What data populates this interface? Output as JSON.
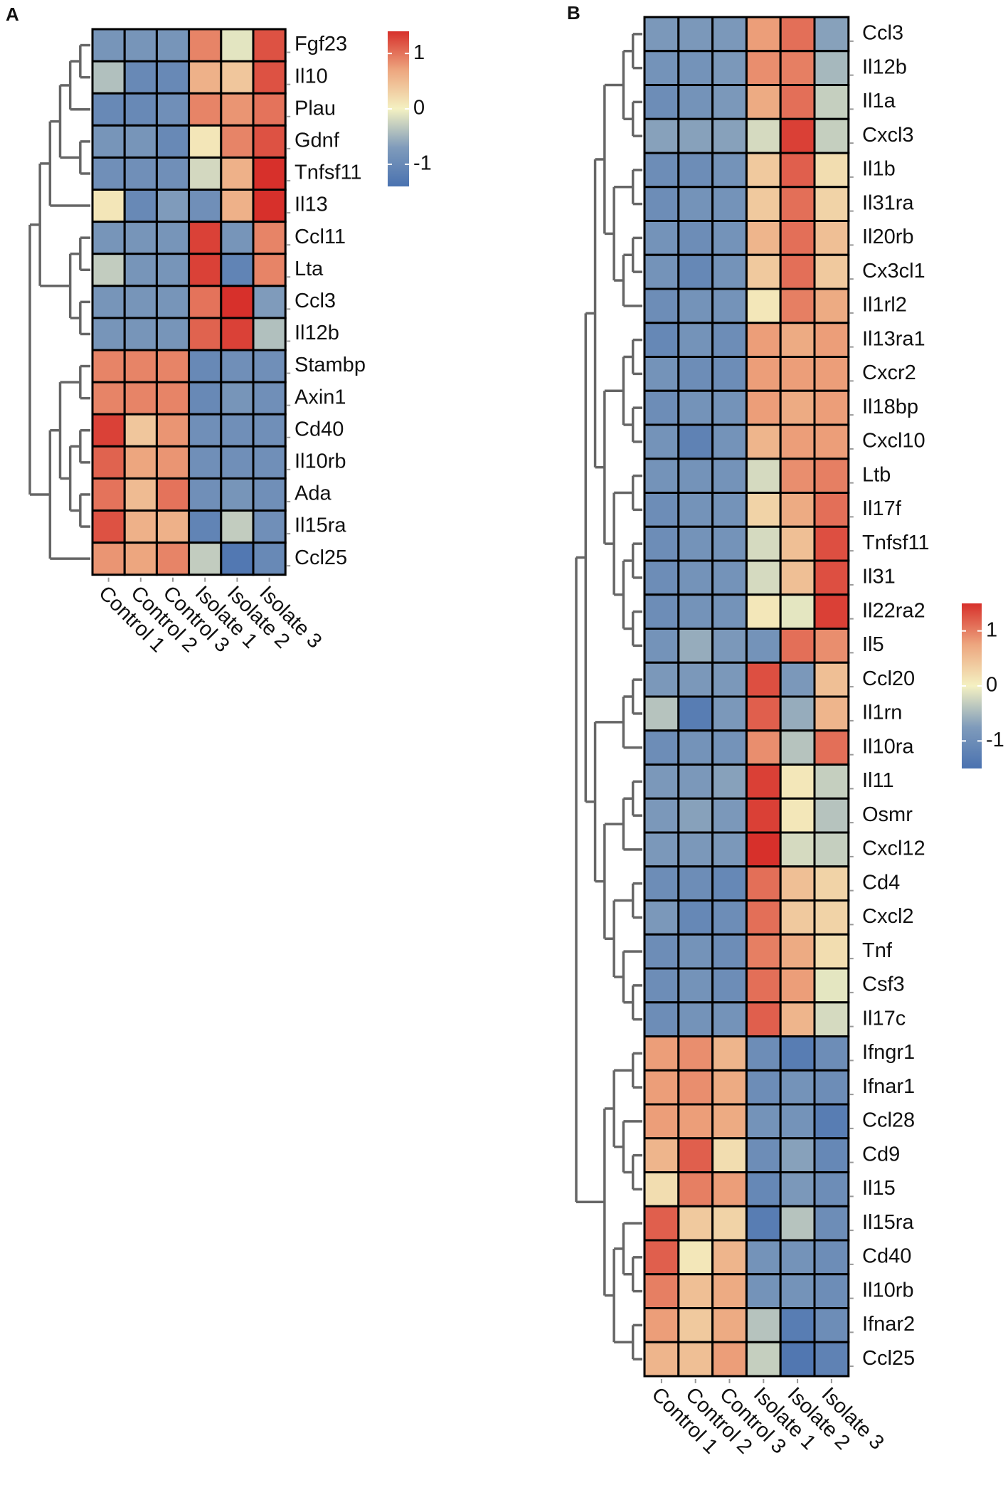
{
  "chart_data": [
    {
      "type": "heatmap",
      "label": "A",
      "rows": [
        "Fgf23",
        "Il10",
        "Plau",
        "Gdnf",
        "Tnfsf11",
        "Il13",
        "Ccl11",
        "Lta",
        "Ccl3",
        "Il12b",
        "Stambp",
        "Axin1",
        "Cd40",
        "Il10rb",
        "Ada",
        "Il15ra",
        "Ccl25"
      ],
      "columns": [
        "Control 1",
        "Control 2",
        "Control 3",
        "Isolate 1",
        "Isolate 2",
        "Isolate 3"
      ],
      "values": [
        [
          -0.8,
          -0.8,
          -0.8,
          0.9,
          -0.1,
          1.2
        ],
        [
          -0.4,
          -1.0,
          -1.0,
          0.6,
          0.4,
          1.2
        ],
        [
          -1.0,
          -1.0,
          -0.9,
          0.9,
          0.8,
          1.0
        ],
        [
          -0.8,
          -0.8,
          -1.0,
          0.1,
          0.9,
          1.2
        ],
        [
          -0.9,
          -0.9,
          -0.9,
          -0.2,
          0.6,
          1.4
        ],
        [
          0.1,
          -1.0,
          -0.7,
          -0.9,
          0.6,
          1.4
        ],
        [
          -0.8,
          -0.8,
          -0.8,
          1.3,
          -0.8,
          0.9
        ],
        [
          -0.3,
          -0.8,
          -0.8,
          1.3,
          -1.1,
          0.9
        ],
        [
          -0.8,
          -0.8,
          -0.8,
          1.0,
          1.4,
          -0.7
        ],
        [
          -0.8,
          -0.8,
          -0.8,
          1.1,
          1.3,
          -0.4
        ],
        [
          0.9,
          0.9,
          0.9,
          -1.0,
          -0.9,
          -0.9
        ],
        [
          0.9,
          0.9,
          0.9,
          -1.0,
          -0.8,
          -0.9
        ],
        [
          1.3,
          0.4,
          0.8,
          -0.9,
          -0.9,
          -0.9
        ],
        [
          1.1,
          0.7,
          0.8,
          -0.9,
          -0.9,
          -0.9
        ],
        [
          1.0,
          0.5,
          1.0,
          -0.9,
          -0.8,
          -0.9
        ],
        [
          1.2,
          0.6,
          0.6,
          -1.1,
          -0.3,
          -0.9
        ],
        [
          0.8,
          0.7,
          0.9,
          -0.3,
          -1.3,
          -1.0
        ]
      ],
      "colorbar_lim": [
        -1.4,
        1.4
      ],
      "colorbar_ticks": [
        -1,
        0,
        1
      ],
      "colors": [
        "#4a72b0",
        "#7f9bbb",
        "#f4f1c2",
        "#eda67f",
        "#d7302b"
      ]
    },
    {
      "type": "heatmap",
      "label": "B",
      "rows": [
        "Ccl3",
        "Il12b",
        "Il1a",
        "Cxcl3",
        "Il1b",
        "Il31ra",
        "Il20rb",
        "Cx3cl1",
        "Il1rl2",
        "Il13ra1",
        "Cxcr2",
        "Il18bp",
        "Cxcl10",
        "Ltb",
        "Il17f",
        "Tnfsf11",
        "Il31",
        "Il22ra2",
        "Il5",
        "Ccl20",
        "Il1rn",
        "Il10ra",
        "Il11",
        "Osmr",
        "Cxcl12",
        "Cd4",
        "Cxcl2",
        "Tnf",
        "Csf3",
        "Il17c",
        "Ifngr1",
        "Ifnar1",
        "Ccl28",
        "Cd9",
        "Il15",
        "Il15ra",
        "Cd40",
        "Il10rb",
        "Ifnar2",
        "Ccl25"
      ],
      "columns": [
        "Control 1",
        "Control 2",
        "Control 3",
        "Isolate 1",
        "Isolate 2",
        "Isolate 3"
      ],
      "values": [
        [
          -0.8,
          -0.8,
          -0.8,
          0.8,
          1.1,
          -0.7
        ],
        [
          -0.9,
          -0.9,
          -0.8,
          0.9,
          1.0,
          -0.5
        ],
        [
          -1.0,
          -0.9,
          -0.8,
          0.7,
          1.1,
          -0.3
        ],
        [
          -0.7,
          -0.7,
          -0.7,
          -0.2,
          1.4,
          -0.3
        ],
        [
          -1.0,
          -1.0,
          -0.9,
          0.4,
          1.2,
          0.2
        ],
        [
          -1.0,
          -0.9,
          -0.9,
          0.4,
          1.1,
          0.3
        ],
        [
          -0.9,
          -1.0,
          -0.9,
          0.6,
          1.1,
          0.5
        ],
        [
          -0.9,
          -1.1,
          -0.9,
          0.4,
          1.1,
          0.4
        ],
        [
          -1.0,
          -0.9,
          -0.9,
          0.1,
          1.0,
          0.7
        ],
        [
          -1.1,
          -0.9,
          -1.0,
          0.8,
          0.7,
          0.8
        ],
        [
          -0.9,
          -1.0,
          -1.0,
          0.8,
          0.8,
          0.8
        ],
        [
          -1.0,
          -0.9,
          -0.9,
          0.8,
          0.7,
          0.8
        ],
        [
          -0.9,
          -1.2,
          -0.9,
          0.6,
          0.8,
          0.8
        ],
        [
          -0.9,
          -0.9,
          -0.9,
          -0.2,
          0.9,
          1.0
        ],
        [
          -1.0,
          -0.9,
          -0.9,
          0.3,
          0.7,
          1.1
        ],
        [
          -1.0,
          -0.9,
          -0.9,
          -0.2,
          0.5,
          1.3
        ],
        [
          -1.0,
          -0.9,
          -0.9,
          -0.2,
          0.5,
          1.3
        ],
        [
          -1.0,
          -0.9,
          -0.9,
          0.1,
          -0.1,
          1.4
        ],
        [
          -0.9,
          -0.6,
          -0.8,
          -0.9,
          1.1,
          0.9
        ],
        [
          -0.8,
          -0.8,
          -0.8,
          1.3,
          -0.8,
          0.5
        ],
        [
          -0.4,
          -1.3,
          -0.8,
          1.2,
          -0.6,
          0.6
        ],
        [
          -1.0,
          -0.9,
          -0.9,
          0.9,
          -0.4,
          1.1
        ],
        [
          -0.8,
          -0.8,
          -0.7,
          1.4,
          0.1,
          -0.3
        ],
        [
          -0.8,
          -0.7,
          -0.8,
          1.4,
          0.1,
          -0.4
        ],
        [
          -0.8,
          -0.8,
          -0.8,
          1.5,
          -0.2,
          -0.3
        ],
        [
          -1.0,
          -1.0,
          -1.1,
          1.1,
          0.5,
          0.3
        ],
        [
          -0.8,
          -1.1,
          -1.0,
          1.1,
          0.4,
          0.3
        ],
        [
          -1.0,
          -0.9,
          -1.0,
          1.0,
          0.7,
          0.2
        ],
        [
          -1.0,
          -0.9,
          -1.0,
          1.1,
          0.8,
          -0.1
        ],
        [
          -1.0,
          -0.9,
          -0.9,
          1.2,
          0.6,
          -0.2
        ],
        [
          0.8,
          0.9,
          0.6,
          -1.0,
          -1.3,
          -1.0
        ],
        [
          0.8,
          0.9,
          0.7,
          -1.0,
          -0.9,
          -1.0
        ],
        [
          0.8,
          0.8,
          0.7,
          -0.9,
          -0.9,
          -1.3
        ],
        [
          0.6,
          1.2,
          0.2,
          -1.0,
          -0.7,
          -1.1
        ],
        [
          0.2,
          1.0,
          0.8,
          -1.1,
          -0.8,
          -1.0
        ],
        [
          1.2,
          0.4,
          0.3,
          -1.3,
          -0.4,
          -1.0
        ],
        [
          1.2,
          0.1,
          0.6,
          -0.9,
          -0.9,
          -1.0
        ],
        [
          1.0,
          0.5,
          0.7,
          -0.9,
          -0.9,
          -1.0
        ],
        [
          0.8,
          0.4,
          0.7,
          -0.4,
          -1.3,
          -1.0
        ],
        [
          0.6,
          0.5,
          0.8,
          -0.3,
          -1.4,
          -1.2
        ]
      ],
      "colorbar_lim": [
        -1.5,
        1.5
      ],
      "colorbar_ticks": [
        -1,
        0,
        1
      ],
      "colors": [
        "#4a72b0",
        "#7f9bbb",
        "#f4f1c2",
        "#eda67f",
        "#d7302b"
      ]
    }
  ]
}
